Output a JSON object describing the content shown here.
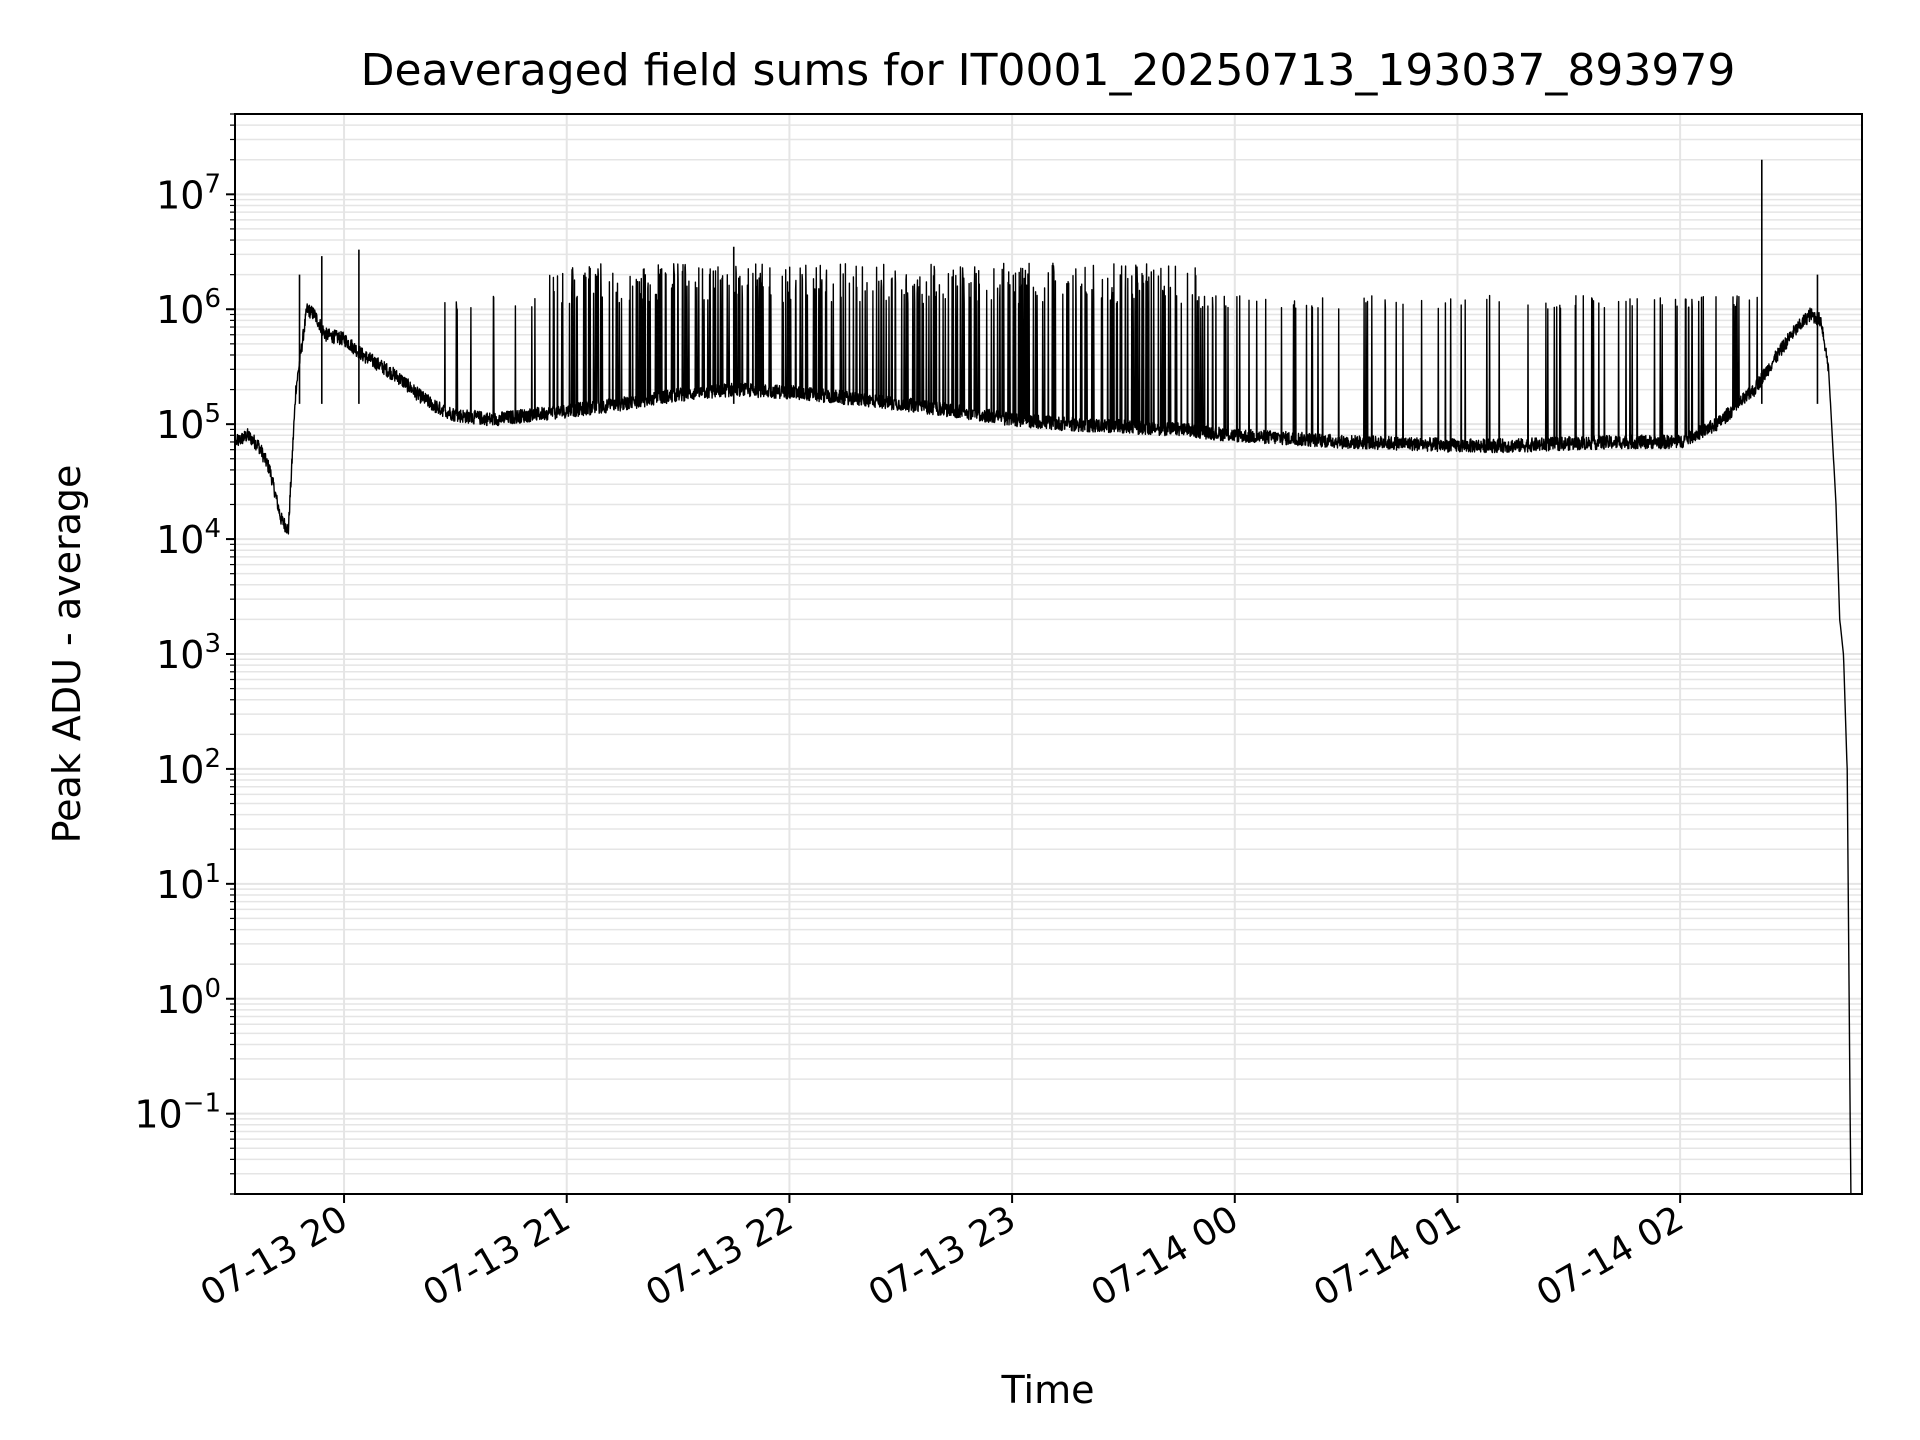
{
  "chart_data": {
    "type": "line",
    "title": "Deaveraged field sums for IT0001_20250713_193037_893979",
    "xlabel": "Time",
    "ylabel": "Peak ADU - average",
    "yscale": "log",
    "ylim": [
      0.02,
      50000000
    ],
    "xlim": [
      "2025-07-13 19:30:37",
      "2025-07-14 02:49:00"
    ],
    "x_tick_labels": [
      "07-13 20",
      "07-13 21",
      "07-13 22",
      "07-13 23",
      "07-14 00",
      "07-14 01",
      "07-14 02"
    ],
    "x_tick_values": [
      "2025-07-13 20:00",
      "2025-07-13 21:00",
      "2025-07-13 22:00",
      "2025-07-13 23:00",
      "2025-07-14 00:00",
      "2025-07-14 01:00",
      "2025-07-14 02:00"
    ],
    "y_tick_exponents": [
      "-1",
      "0",
      "1",
      "2",
      "3",
      "4",
      "5",
      "6",
      "7"
    ],
    "y_tick_base": "10",
    "grid": true,
    "line_color": "#000000",
    "grid_color": "#e5e5e5",
    "series": [
      {
        "x": [
          "2025-07-13 19:31",
          "2025-07-13 19:34",
          "2025-07-13 19:37",
          "2025-07-13 19:40",
          "2025-07-13 19:43",
          "2025-07-13 19:45",
          "2025-07-13 19:47",
          "2025-07-13 19:50",
          "2025-07-13 19:52",
          "2025-07-13 19:55",
          "2025-07-13 20:00",
          "2025-07-13 20:05",
          "2025-07-13 20:10",
          "2025-07-13 20:15",
          "2025-07-13 20:20",
          "2025-07-13 20:25",
          "2025-07-13 20:30",
          "2025-07-13 20:40",
          "2025-07-13 20:50",
          "2025-07-13 21:00",
          "2025-07-13 21:15",
          "2025-07-13 21:30",
          "2025-07-13 21:45",
          "2025-07-13 22:00",
          "2025-07-13 22:15",
          "2025-07-13 22:30",
          "2025-07-13 22:45",
          "2025-07-13 23:00",
          "2025-07-13 23:15",
          "2025-07-13 23:30",
          "2025-07-13 23:45",
          "2025-07-14 00:00",
          "2025-07-14 00:15",
          "2025-07-14 00:30",
          "2025-07-14 00:45",
          "2025-07-14 01:00",
          "2025-07-14 01:15",
          "2025-07-14 01:30",
          "2025-07-14 01:45",
          "2025-07-14 02:00",
          "2025-07-14 02:10",
          "2025-07-14 02:20",
          "2025-07-14 02:25",
          "2025-07-14 02:30",
          "2025-07-14 02:35",
          "2025-07-14 02:38",
          "2025-07-14 02:40",
          "2025-07-14 02:42",
          "2025-07-14 02:43",
          "2025-07-14 02:44",
          "2025-07-14 02:45",
          "2025-07-14 02:46"
        ],
        "y": [
          70000,
          80000,
          65000,
          40000,
          15000,
          12000,
          200000,
          1000000,
          900000,
          600000,
          550000,
          400000,
          320000,
          250000,
          180000,
          140000,
          120000,
          110000,
          120000,
          130000,
          150000,
          180000,
          200000,
          190000,
          170000,
          150000,
          130000,
          110000,
          100000,
          95000,
          90000,
          80000,
          75000,
          70000,
          68000,
          65000,
          65000,
          68000,
          70000,
          70000,
          100000,
          200000,
          350000,
          600000,
          900000,
          800000,
          300000,
          20000,
          2000,
          1000,
          100,
          0.02
        ],
        "spikes": [
          {
            "x": "2025-07-13 19:48",
            "y": 2000000
          },
          {
            "x": "2025-07-13 19:54",
            "y": 2900000
          },
          {
            "x": "2025-07-13 20:04",
            "y": 3300000
          },
          {
            "x": "2025-07-13 21:45",
            "y": 3500000
          },
          {
            "x": "2025-07-14 02:22",
            "y": 20000000
          },
          {
            "x": "2025-07-14 02:37",
            "y": 2000000
          }
        ]
      }
    ]
  }
}
